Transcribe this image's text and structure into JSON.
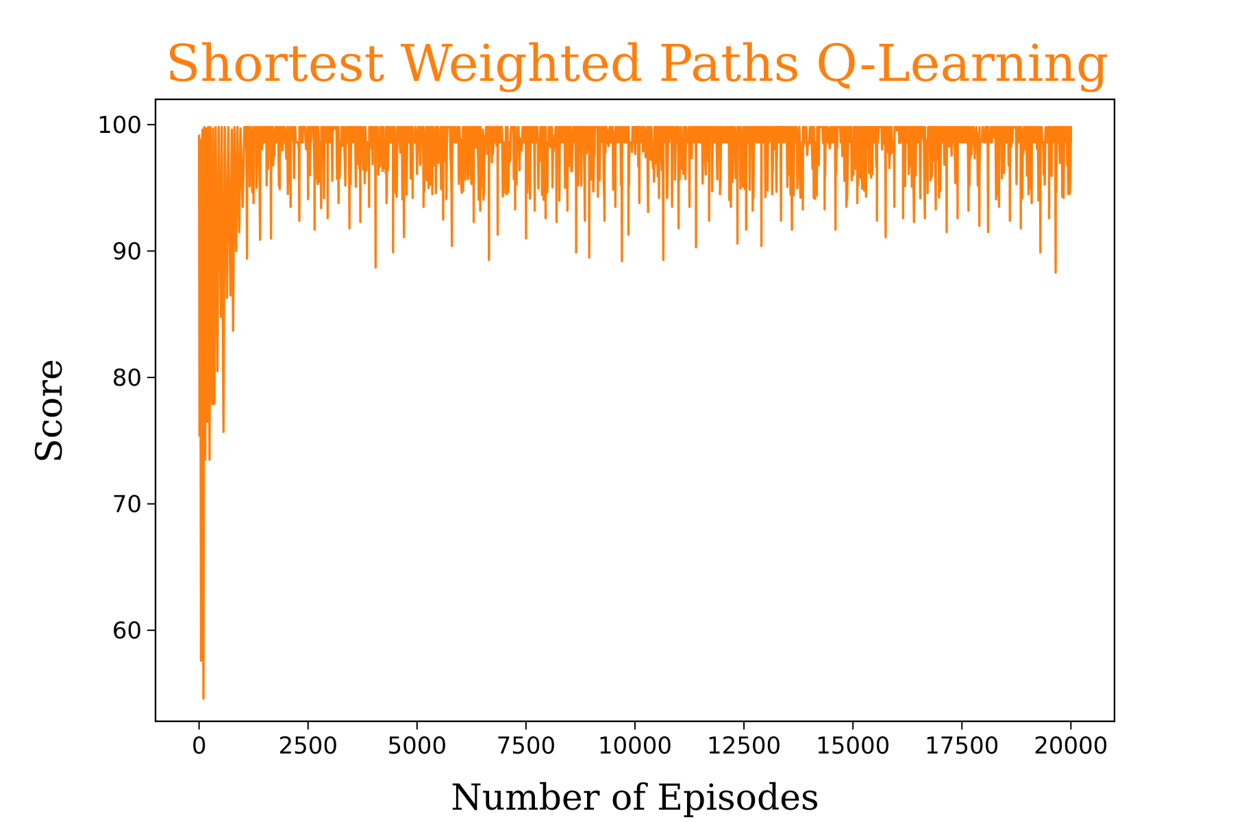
{
  "chart_data": {
    "type": "line",
    "title": "Shortest Weighted Paths Q-Learning",
    "xlabel": "Number of Episodes",
    "ylabel": "Score",
    "xlim": [
      -1000,
      21000
    ],
    "ylim": [
      52.8,
      102
    ],
    "x_ticks": [
      0,
      2500,
      5000,
      7500,
      10000,
      12500,
      15000,
      17500,
      20000
    ],
    "x_tick_labels": [
      "0",
      "2500",
      "5000",
      "7500",
      "10000",
      "12500",
      "15000",
      "17500",
      "20000"
    ],
    "y_ticks": [
      60,
      70,
      80,
      90,
      100
    ],
    "y_tick_labels": [
      "60",
      "70",
      "80",
      "90",
      "100"
    ],
    "grid": false,
    "legend": "none",
    "colors": {
      "line": "#ff7f0e",
      "title": "#ff7f0e",
      "axes": "#000000"
    },
    "series": [
      {
        "x_start": 0,
        "x_end": 20000,
        "upper": 99.8,
        "typical_range": [
          94,
          99.8
        ],
        "early_points": [
          [
            0,
            99.2
          ],
          [
            10,
            75.4
          ],
          [
            25,
            98.8
          ],
          [
            45,
            57.6
          ],
          [
            60,
            97.5
          ],
          [
            80,
            99.6
          ],
          [
            100,
            54.6
          ],
          [
            120,
            99.8
          ],
          [
            140,
            73.5
          ],
          [
            160,
            99.7
          ],
          [
            190,
            76.5
          ],
          [
            210,
            99.8
          ],
          [
            240,
            73.5
          ],
          [
            260,
            99.8
          ],
          [
            300,
            77.9
          ],
          [
            320,
            99.7
          ],
          [
            350,
            77.9
          ],
          [
            380,
            99.8
          ],
          [
            420,
            80.5
          ],
          [
            450,
            99.8
          ],
          [
            500,
            84.8
          ],
          [
            520,
            99.8
          ],
          [
            560,
            75.7
          ],
          [
            590,
            99.8
          ],
          [
            640,
            86.3
          ],
          [
            670,
            99.8
          ],
          [
            720,
            86.5
          ],
          [
            750,
            99.6
          ],
          [
            780,
            83.7
          ],
          [
            810,
            99.8
          ],
          [
            850,
            90.0
          ],
          [
            880,
            99.8
          ],
          [
            920,
            91.5
          ],
          [
            950,
            99.7
          ],
          [
            1000,
            93.5
          ],
          [
            1040,
            99.8
          ]
        ],
        "dips": [
          [
            1100,
            89.4
          ],
          [
            1250,
            93.8
          ],
          [
            1400,
            90.9
          ],
          [
            1550,
            95.2
          ],
          [
            1650,
            91.0
          ],
          [
            1850,
            94.9
          ],
          [
            2100,
            93.5
          ],
          [
            2300,
            92.4
          ],
          [
            2500,
            94.1
          ],
          [
            2650,
            91.7
          ],
          [
            2800,
            93.4
          ],
          [
            2950,
            92.6
          ],
          [
            3200,
            93.8
          ],
          [
            3450,
            91.8
          ],
          [
            3700,
            92.3
          ],
          [
            3900,
            93.5
          ],
          [
            4050,
            88.7
          ],
          [
            4300,
            93.8
          ],
          [
            4450,
            89.9
          ],
          [
            4700,
            91.1
          ],
          [
            4900,
            94.2
          ],
          [
            5150,
            93.5
          ],
          [
            5350,
            94.5
          ],
          [
            5600,
            92.5
          ],
          [
            5800,
            90.4
          ],
          [
            6050,
            94.8
          ],
          [
            6300,
            92.3
          ],
          [
            6450,
            93.2
          ],
          [
            6650,
            89.3
          ],
          [
            6850,
            91.3
          ],
          [
            7050,
            94.5
          ],
          [
            7250,
            93.3
          ],
          [
            7500,
            91.0
          ],
          [
            7700,
            93.2
          ],
          [
            7950,
            92.6
          ],
          [
            8200,
            92.3
          ],
          [
            8450,
            93.2
          ],
          [
            8650,
            89.9
          ],
          [
            8850,
            92.4
          ],
          [
            8950,
            89.5
          ],
          [
            9150,
            94.3
          ],
          [
            9300,
            92.4
          ],
          [
            9550,
            93.5
          ],
          [
            9700,
            89.2
          ],
          [
            9850,
            91.3
          ],
          [
            10100,
            93.8
          ],
          [
            10300,
            93.1
          ],
          [
            10550,
            94.2
          ],
          [
            10650,
            89.3
          ],
          [
            10850,
            93.5
          ],
          [
            11000,
            91.8
          ],
          [
            11250,
            93.5
          ],
          [
            11400,
            90.3
          ],
          [
            11700,
            92.4
          ],
          [
            11950,
            94.5
          ],
          [
            12200,
            93.5
          ],
          [
            12350,
            90.6
          ],
          [
            12550,
            91.7
          ],
          [
            12700,
            93.2
          ],
          [
            12900,
            90.4
          ],
          [
            13150,
            94.5
          ],
          [
            13350,
            92.4
          ],
          [
            13600,
            91.7
          ],
          [
            13850,
            93.3
          ],
          [
            14100,
            94.2
          ],
          [
            14350,
            93.3
          ],
          [
            14600,
            91.7
          ],
          [
            14850,
            93.5
          ],
          [
            15100,
            93.8
          ],
          [
            15300,
            94.3
          ],
          [
            15550,
            92.4
          ],
          [
            15750,
            91.1
          ],
          [
            15950,
            93.5
          ],
          [
            16150,
            92.6
          ],
          [
            16400,
            92.3
          ],
          [
            16650,
            92.6
          ],
          [
            16900,
            93.3
          ],
          [
            17150,
            91.5
          ],
          [
            17400,
            92.6
          ],
          [
            17650,
            93.2
          ],
          [
            17900,
            92.0
          ],
          [
            18100,
            91.5
          ],
          [
            18350,
            93.5
          ],
          [
            18600,
            92.4
          ],
          [
            18850,
            91.8
          ],
          [
            19100,
            93.8
          ],
          [
            19300,
            89.9
          ],
          [
            19500,
            92.6
          ],
          [
            19650,
            88.3
          ],
          [
            19800,
            94.3
          ],
          [
            19950,
            94.6
          ]
        ],
        "end_value": 98.6
      }
    ]
  }
}
